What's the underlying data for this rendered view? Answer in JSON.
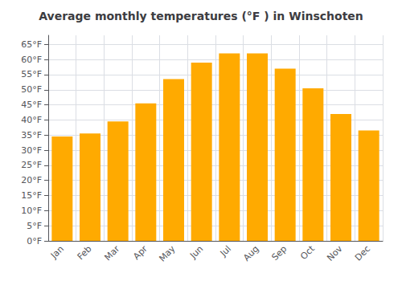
{
  "chart_data": {
    "type": "bar",
    "title": "Average monthly temperatures (°F ) in Winschoten",
    "categories": [
      "Jan",
      "Feb",
      "Mar",
      "Apr",
      "May",
      "Jun",
      "Jul",
      "Aug",
      "Sep",
      "Oct",
      "Nov",
      "Dec"
    ],
    "values": [
      34.5,
      35.5,
      39.5,
      45.5,
      53.5,
      59.0,
      62.0,
      62.0,
      57.0,
      50.5,
      42.0,
      36.5
    ],
    "color": "#FFAA00",
    "ylim": [
      0,
      68
    ],
    "yticks": [
      {
        "value": 0,
        "label": "0°F"
      },
      {
        "value": 5,
        "label": "5°F"
      },
      {
        "value": 10,
        "label": "10°F"
      },
      {
        "value": 15,
        "label": "15°F"
      },
      {
        "value": 20,
        "label": "20°F"
      },
      {
        "value": 25,
        "label": "25°F"
      },
      {
        "value": 30,
        "label": "30°F"
      },
      {
        "value": 35,
        "label": "35°F"
      },
      {
        "value": 40,
        "label": "40°F"
      },
      {
        "value": 45,
        "label": "45°F"
      },
      {
        "value": 50,
        "label": "50°F"
      },
      {
        "value": 55,
        "label": "55°F"
      },
      {
        "value": 60,
        "label": "60°F"
      },
      {
        "value": 65,
        "label": "65°F"
      }
    ],
    "grid": true
  }
}
